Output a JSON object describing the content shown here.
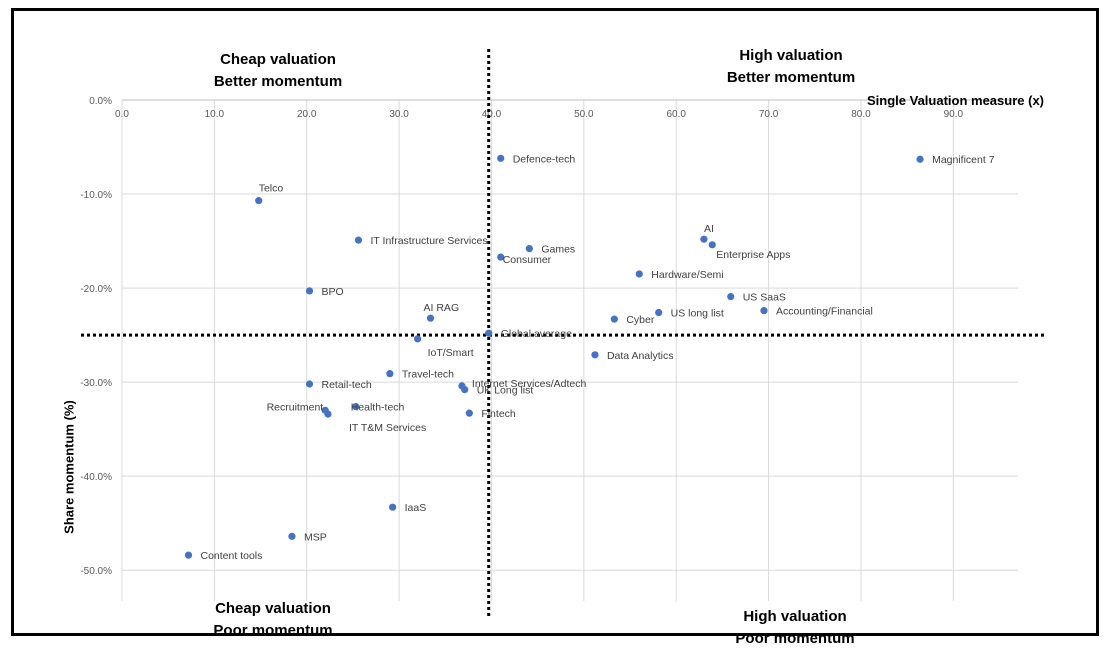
{
  "chart_data": {
    "type": "scatter",
    "xlabel": "Single Valuation measure (x)",
    "ylabel": "Share momentum (%)",
    "xlim": [
      0,
      97
    ],
    "ylim": [
      -52,
      0
    ],
    "x_ticks": [
      0,
      10,
      20,
      30,
      40,
      50,
      60,
      70,
      80,
      90
    ],
    "x_tick_labels": [
      "0.0",
      "10.0",
      "20.0",
      "30.0",
      "40.0",
      "50.0",
      "60.0",
      "70.0",
      "80.0",
      "90.0"
    ],
    "y_ticks": [
      0,
      -10,
      -20,
      -30,
      -40,
      -50
    ],
    "y_tick_labels": [
      "0.0%",
      "-10.0%",
      "-20.0%",
      "-30.0%",
      "-40.0%",
      "-50.0%"
    ],
    "grid": true,
    "marker_color": "#4472C4",
    "reference_lines": {
      "x": 39.7,
      "y": -25.0,
      "style": "dotted"
    },
    "points": [
      {
        "label": "Defence-tech",
        "x": 41.0,
        "y": -6.2
      },
      {
        "label": "Magnificent 7",
        "x": 86.4,
        "y": -6.3
      },
      {
        "label": "Telco",
        "x": 14.8,
        "y": -10.7
      },
      {
        "label": "IT Infrastructure Services",
        "x": 25.6,
        "y": -14.9
      },
      {
        "label": "Games",
        "x": 44.1,
        "y": -15.8
      },
      {
        "label": "Consumer",
        "x": 41.0,
        "y": -16.7
      },
      {
        "label": "AI",
        "x": 63.0,
        "y": -14.8
      },
      {
        "label": "Enterprise Apps",
        "x": 63.9,
        "y": -15.4
      },
      {
        "label": "Hardware/Semi",
        "x": 56.0,
        "y": -18.5
      },
      {
        "label": "BPO",
        "x": 20.3,
        "y": -20.3
      },
      {
        "label": "US SaaS",
        "x": 65.9,
        "y": -20.9
      },
      {
        "label": "AI RAG",
        "x": 33.4,
        "y": -23.2
      },
      {
        "label": "Cyber",
        "x": 53.3,
        "y": -23.3
      },
      {
        "label": "US long list",
        "x": 58.1,
        "y": -22.6
      },
      {
        "label": "Accounting/Financial",
        "x": 69.5,
        "y": -22.4
      },
      {
        "label": "Global average",
        "x": 39.7,
        "y": -24.8
      },
      {
        "label": "IoT/Smart",
        "x": 32.0,
        "y": -25.4
      },
      {
        "label": "Data Analytics",
        "x": 51.2,
        "y": -27.1
      },
      {
        "label": "Travel-tech",
        "x": 29.0,
        "y": -29.1
      },
      {
        "label": "Retail-tech",
        "x": 20.3,
        "y": -30.2
      },
      {
        "label": "Internet Services/Adtech",
        "x": 36.8,
        "y": -30.4
      },
      {
        "label": "UK Long list",
        "x": 37.1,
        "y": -30.8
      },
      {
        "label": "Health-tech",
        "x": 25.3,
        "y": -32.6
      },
      {
        "label": "Recruitment",
        "x": 22.0,
        "y": -33.0
      },
      {
        "label": "IT T&M Services",
        "x": 22.3,
        "y": -33.4
      },
      {
        "label": "Fintech",
        "x": 37.6,
        "y": -33.3
      },
      {
        "label": "IaaS",
        "x": 29.3,
        "y": -43.3
      },
      {
        "label": "MSP",
        "x": 18.4,
        "y": -46.4
      },
      {
        "label": "Content tools",
        "x": 7.2,
        "y": -48.4
      }
    ]
  },
  "quadrants": {
    "top_left": {
      "line1": "Cheap valuation",
      "line2": "Better momentum"
    },
    "top_right": {
      "line1": "High valuation",
      "line2": "Better momentum"
    },
    "bottom_left": {
      "line1": "Cheap valuation",
      "line2": "Poor momentum"
    },
    "bottom_right": {
      "line1": "High valuation",
      "line2": "Poor momentum"
    }
  }
}
